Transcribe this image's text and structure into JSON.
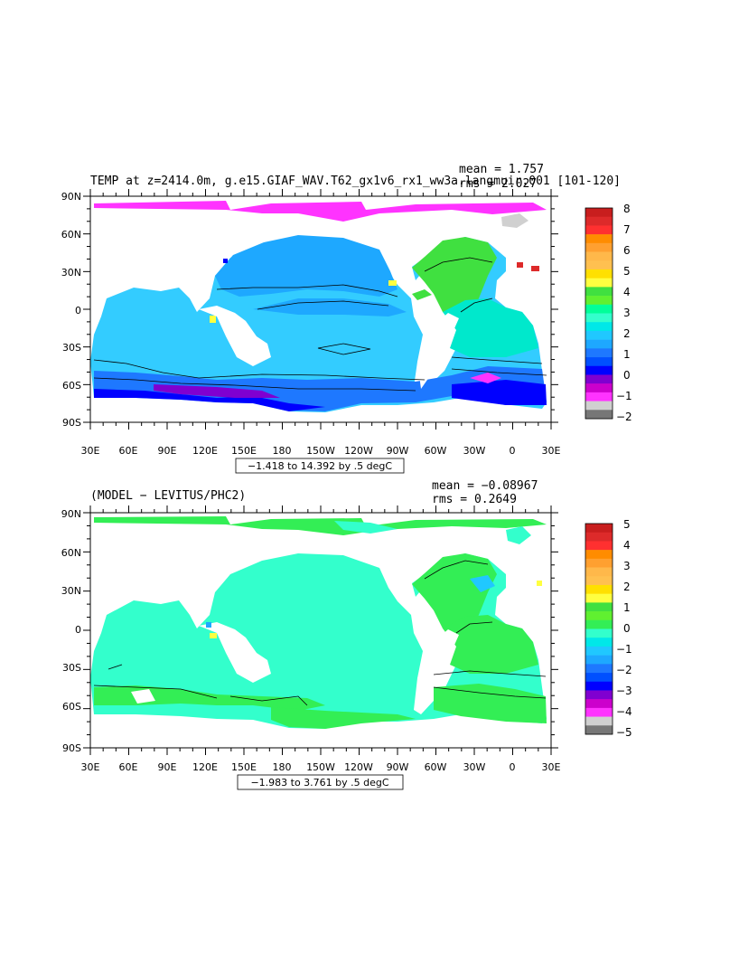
{
  "panel_top": {
    "title": "TEMP at z=2414.0m, g.e15.GIAF_WAV.T62_gx1v6_rx1_ww3a.langmuir.001 [101-120]",
    "mean_label": "mean = 1.757",
    "rms_label": "rms = 2.027",
    "range_label": "−1.418 to 14.392 by .5 degC",
    "lat_labels": [
      "90N",
      "60N",
      "30N",
      "0",
      "30S",
      "60S",
      "90S"
    ],
    "lon_labels": [
      "30E",
      "60E",
      "90E",
      "120E",
      "150E",
      "180",
      "150W",
      "120W",
      "90W",
      "60W",
      "30W",
      "0",
      "30E"
    ],
    "colorbar": {
      "labels": [
        "8",
        "7",
        "6",
        "5",
        "4",
        "3",
        "2",
        "1",
        "0",
        "−1",
        "−2"
      ],
      "colors": [
        "#c81e1e",
        "#dd2a2a",
        "#ff3030",
        "#ff8c00",
        "#ffa030",
        "#ffb84a",
        "#ffc050",
        "#ffe000",
        "#ffff40",
        "#40e040",
        "#60f030",
        "#00ff99",
        "#33ffcc",
        "#00e8e8",
        "#20c8ff",
        "#1ea8ff",
        "#1e78ff",
        "#0050ff",
        "#0000ff",
        "#8000d0",
        "#cc00cc",
        "#ff33ff",
        "#d0d0d0",
        "#777777"
      ]
    }
  },
  "panel_bottom": {
    "title": "(MODEL − LEVITUS/PHC2)",
    "mean_label": "mean = −0.08967",
    "rms_label": "rms = 0.2649",
    "range_label": "−1.983 to 3.761 by .5 degC",
    "lat_labels": [
      "90N",
      "60N",
      "30N",
      "0",
      "30S",
      "60S",
      "90S"
    ],
    "lon_labels": [
      "30E",
      "60E",
      "90E",
      "120E",
      "150E",
      "180",
      "150W",
      "120W",
      "90W",
      "60W",
      "30W",
      "0",
      "30E"
    ],
    "colorbar": {
      "labels": [
        "5",
        "4",
        "3",
        "2",
        "1",
        "0",
        "−1",
        "−2",
        "−3",
        "−4",
        "−5"
      ],
      "colors": [
        "#c81e1e",
        "#dd2a2a",
        "#ff3030",
        "#ff8c00",
        "#ffa030",
        "#ffb84a",
        "#ffc050",
        "#ffe000",
        "#ffff40",
        "#40e040",
        "#60f030",
        "#33ee55",
        "#33ffcc",
        "#00e8e8",
        "#20c8ff",
        "#1ea8ff",
        "#1e78ff",
        "#0050ff",
        "#0000ff",
        "#8000d0",
        "#cc00cc",
        "#ff33ff",
        "#d0d0d0",
        "#777777"
      ]
    }
  }
}
